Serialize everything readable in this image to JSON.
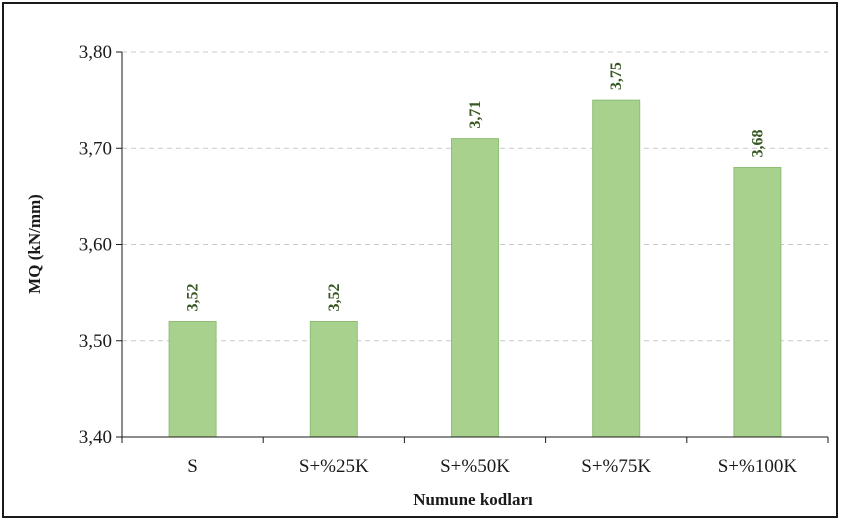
{
  "chart_data": {
    "type": "bar",
    "title": "",
    "xlabel": "Numune kodları",
    "ylabel": "MQ (kN/mm)",
    "categories": [
      "S",
      "S+%25K",
      "S+%50K",
      "S+%75K",
      "S+%100K"
    ],
    "values": [
      3.52,
      3.52,
      3.71,
      3.75,
      3.68
    ],
    "value_labels": [
      "3,52",
      "3,52",
      "3,71",
      "3,75",
      "3,68"
    ],
    "ylim": [
      3.4,
      3.8
    ],
    "yticks": [
      3.4,
      3.5,
      3.6,
      3.7,
      3.8
    ],
    "ytick_labels": [
      "3,40",
      "3,50",
      "3,60",
      "3,70",
      "3,80"
    ],
    "grid": true,
    "legend": "none",
    "colors": {
      "bar_fill": "#a9d18e",
      "bar_edge": "#8fbf75",
      "data_label": "#385723",
      "grid": "#c8c8c8",
      "axis": "#1a1a1a"
    }
  }
}
